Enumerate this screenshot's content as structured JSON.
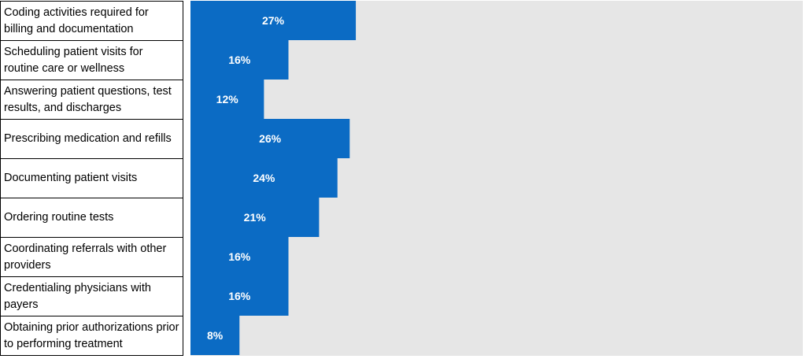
{
  "chart_data": {
    "type": "bar",
    "orientation": "horizontal",
    "categories": [
      "Coding activities required for billing and documentation",
      "Scheduling patient visits for routine care or wellness",
      "Answering patient questions, test results, and discharges",
      "Prescribing medication and refills",
      "Documenting patient visits",
      "Ordering routine tests",
      "Coordinating referrals with other providers",
      "Credentialing physicians with payers",
      "Obtaining prior authorizations prior to performing treatment"
    ],
    "values": [
      27,
      16,
      12,
      26,
      24,
      21,
      16,
      16,
      8
    ],
    "value_labels": [
      "27%",
      "16%",
      "12%",
      "26%",
      "24%",
      "21%",
      "16%",
      "16%",
      "8%"
    ],
    "xlim": [
      0,
      100
    ],
    "grid": false,
    "legend": "none",
    "colors": {
      "bar": "#0b6bc4",
      "plot_background": "#e6e6e6",
      "value_label": "#ffffff"
    }
  }
}
